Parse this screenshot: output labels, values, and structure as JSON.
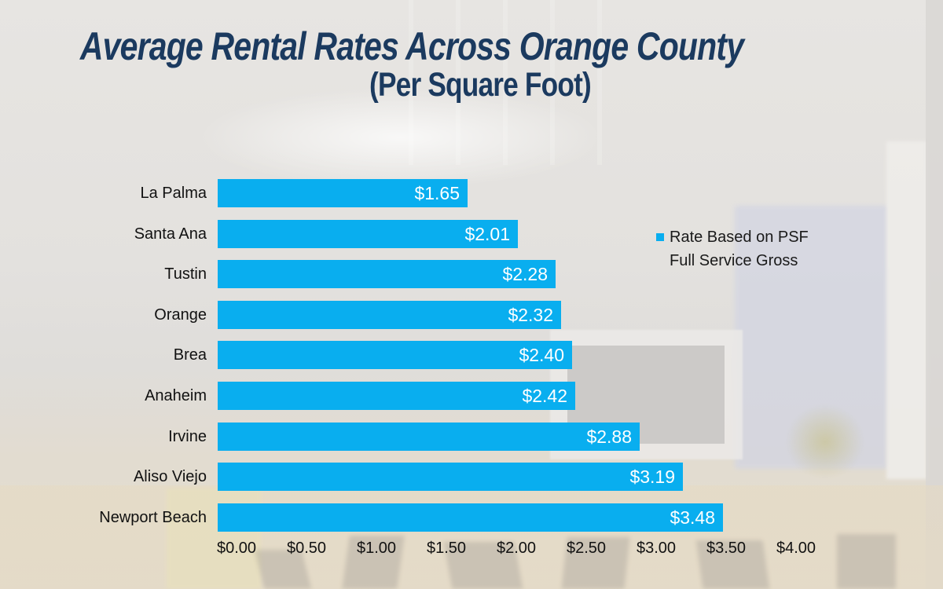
{
  "title": {
    "line1": "Average Rental Rates Across Orange County",
    "line2": "(Per Square Foot)",
    "color": "#1b3a5f"
  },
  "legend": {
    "marker": "blue-square",
    "marker_color": "#09aeef",
    "line1": "Rate Based on PSF",
    "line2": "Full Service Gross"
  },
  "chart_data": {
    "type": "bar",
    "orientation": "horizontal",
    "title": "Average Rental Rates Across Orange County (Per Square Foot)",
    "series_name": "Rate Based on PSF Full Service Gross",
    "categories": [
      "La Palma",
      "Santa Ana",
      "Tustin",
      "Orange",
      "Brea",
      "Anaheim",
      "Irvine",
      "Aliso Viejo",
      "Newport Beach"
    ],
    "values": [
      1.65,
      2.01,
      2.28,
      2.32,
      2.4,
      2.42,
      2.88,
      3.19,
      3.48
    ],
    "value_labels": [
      "$1.65",
      "$2.01",
      "$2.28",
      "$2.32",
      "$2.40",
      "$2.42",
      "$2.88",
      "$3.19",
      "$3.48"
    ],
    "bar_color": "#09aeef",
    "value_label_color": "#ffffff",
    "xlabel": "",
    "ylabel": "",
    "xlim": [
      0,
      4
    ],
    "xticks": [
      "$0.00",
      "$0.50",
      "$1.00",
      "$1.50",
      "$2.00",
      "$2.50",
      "$3.00",
      "$3.50",
      "$4.00"
    ],
    "xtick_values": [
      0,
      0.5,
      1.0,
      1.5,
      2.0,
      2.5,
      3.0,
      3.5,
      4.0
    ],
    "grid": "off",
    "legend_position": "right-of-bars"
  }
}
